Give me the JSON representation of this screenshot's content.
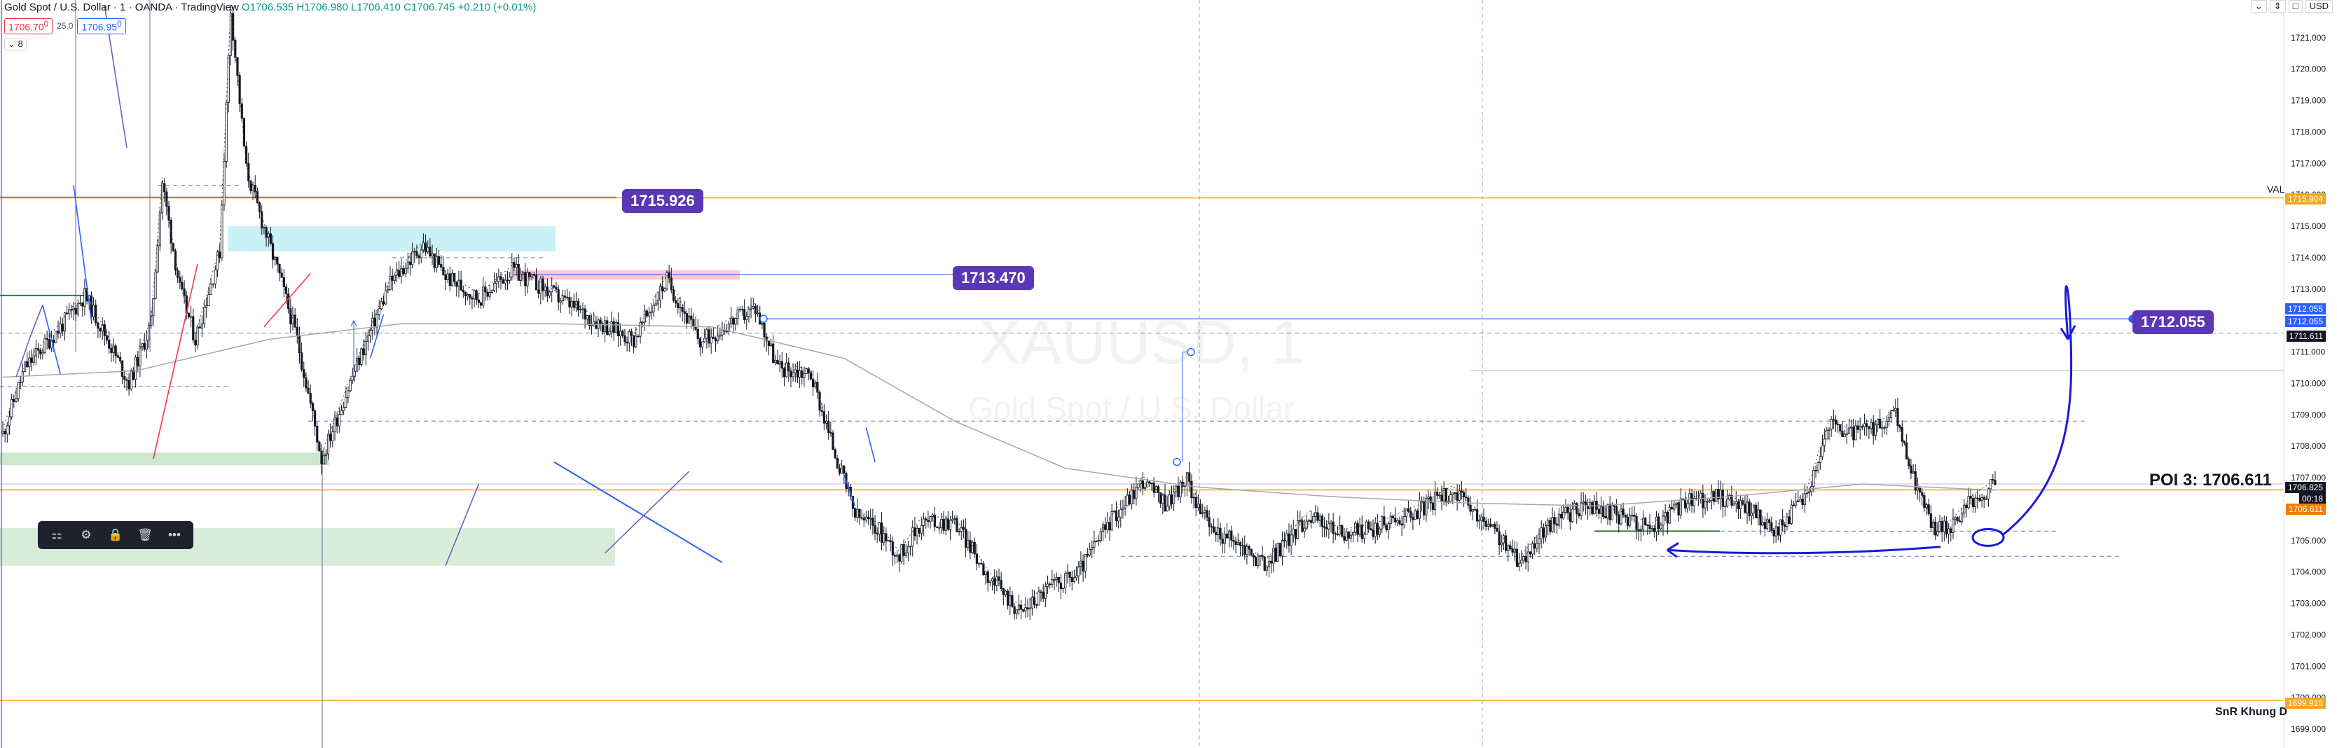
{
  "header": {
    "title": "Gold Spot / U.S. Dollar · 1 · OANDA · TradingView",
    "ohlc": "O1706.535 H1706.980 L1706.410 C1706.745 +0.210 (+0.01%)",
    "sell_price": "1706.70",
    "sell_sup": "0",
    "spread": "25.0",
    "buy_price": "1706.95",
    "buy_sup": "0",
    "indicators_count": "8",
    "currency": "USD"
  },
  "watermark": {
    "symbol": "XAUUSD, 1",
    "description": "Gold Spot / U.S. Dollar"
  },
  "annotations": {
    "label_1715": "1715.926",
    "label_1713": "1713.470",
    "label_1712": "1712.055",
    "poi": "POI 3: 1706.611",
    "val": "VAL",
    "snr": "SnR Khung D"
  },
  "axis_tags": {
    "val_tag": "1715.904",
    "blue_tag_1": "1712.055",
    "blue_tag_2": "1712.055",
    "dark_tag": "1711.611",
    "current_price": "1706.825",
    "countdown": "00:18",
    "poi_tag": "1706.611",
    "snr_tag": "1699.915"
  },
  "toolbar": {
    "icons": [
      "layout-icon",
      "settings-icon",
      "lock-icon",
      "trash-icon",
      "more-icon"
    ]
  },
  "colors": {
    "up": "#089981",
    "down": "#f23645",
    "orange": "#f5a623",
    "purple": "#5b36b5",
    "blue": "#2962ff",
    "cyan_zone": "#b2ebf2",
    "green_zone": "#c8e6c9",
    "pink_zone": "#f8bbd0"
  },
  "chart_data": {
    "type": "candlestick",
    "symbol": "XAUUSD",
    "timeframe": "1",
    "ylim": [
      1698.4,
      1722.2
    ],
    "y_ticks": [
      1699.0,
      1700.0,
      1701.0,
      1702.0,
      1703.0,
      1704.0,
      1705.0,
      1706.0,
      1707.0,
      1708.0,
      1709.0,
      1710.0,
      1711.0,
      1712.0,
      1713.0,
      1714.0,
      1715.0,
      1716.0,
      1717.0,
      1718.0,
      1719.0,
      1720.0,
      1721.0
    ],
    "horizontal_levels": [
      {
        "name": "VAL",
        "price": 1715.904
      },
      {
        "name": "POI 3",
        "price": 1706.611
      },
      {
        "name": "SnR Khung D",
        "price": 1699.915
      }
    ],
    "price_path": [
      [
        0,
        1708.4
      ],
      [
        10,
        1710.5
      ],
      [
        25,
        1711.7
      ],
      [
        37,
        1712.8
      ],
      [
        48,
        1711.3
      ],
      [
        57,
        1710.0
      ],
      [
        67,
        1711.9
      ],
      [
        72,
        1716.4
      ],
      [
        80,
        1713.0
      ],
      [
        87,
        1711.4
      ],
      [
        98,
        1714.2
      ],
      [
        103,
        1721.9
      ],
      [
        110,
        1716.8
      ],
      [
        116,
        1715.4
      ],
      [
        125,
        1713.4
      ],
      [
        133,
        1711.4
      ],
      [
        144,
        1707.6
      ],
      [
        160,
        1710.6
      ],
      [
        175,
        1713.2
      ],
      [
        190,
        1714.4
      ],
      [
        200,
        1713.4
      ],
      [
        215,
        1712.7
      ],
      [
        230,
        1713.6
      ],
      [
        245,
        1713.0
      ],
      [
        265,
        1712.1
      ],
      [
        285,
        1711.4
      ],
      [
        300,
        1713.3
      ],
      [
        315,
        1711.3
      ],
      [
        330,
        1712.0
      ],
      [
        340,
        1712.4
      ],
      [
        350,
        1710.5
      ],
      [
        365,
        1710.3
      ],
      [
        375,
        1708.0
      ],
      [
        385,
        1705.8
      ],
      [
        395,
        1705.4
      ],
      [
        405,
        1704.5
      ],
      [
        415,
        1705.6
      ],
      [
        430,
        1705.6
      ],
      [
        445,
        1703.9
      ],
      [
        460,
        1702.7
      ],
      [
        472,
        1703.5
      ],
      [
        485,
        1703.9
      ],
      [
        500,
        1705.6
      ],
      [
        515,
        1706.9
      ],
      [
        525,
        1706.2
      ],
      [
        535,
        1706.9
      ],
      [
        545,
        1705.4
      ],
      [
        560,
        1704.8
      ],
      [
        570,
        1704.2
      ],
      [
        590,
        1705.8
      ],
      [
        605,
        1705.2
      ],
      [
        620,
        1705.4
      ],
      [
        640,
        1706.0
      ],
      [
        655,
        1706.6
      ],
      [
        665,
        1705.8
      ],
      [
        675,
        1705.2
      ],
      [
        685,
        1704.3
      ],
      [
        700,
        1705.6
      ],
      [
        715,
        1706.1
      ],
      [
        730,
        1705.8
      ],
      [
        745,
        1705.4
      ],
      [
        760,
        1706.2
      ],
      [
        775,
        1706.4
      ],
      [
        790,
        1706.0
      ],
      [
        800,
        1705.2
      ],
      [
        815,
        1706.5
      ],
      [
        825,
        1708.7
      ],
      [
        835,
        1708.4
      ],
      [
        845,
        1708.5
      ],
      [
        855,
        1709.0
      ],
      [
        862,
        1707.2
      ],
      [
        872,
        1705.4
      ],
      [
        880,
        1705.5
      ],
      [
        890,
        1706.3
      ],
      [
        900,
        1706.8
      ]
    ],
    "moving_average": [
      [
        0,
        1710.2
      ],
      [
        60,
        1710.4
      ],
      [
        120,
        1711.4
      ],
      [
        180,
        1711.9
      ],
      [
        250,
        1711.9
      ],
      [
        320,
        1711.8
      ],
      [
        380,
        1710.8
      ],
      [
        430,
        1708.8
      ],
      [
        480,
        1707.3
      ],
      [
        540,
        1706.7
      ],
      [
        600,
        1706.4
      ],
      [
        660,
        1706.2
      ],
      [
        720,
        1706.1
      ],
      [
        780,
        1706.4
      ],
      [
        840,
        1706.8
      ],
      [
        900,
        1706.6
      ]
    ]
  }
}
